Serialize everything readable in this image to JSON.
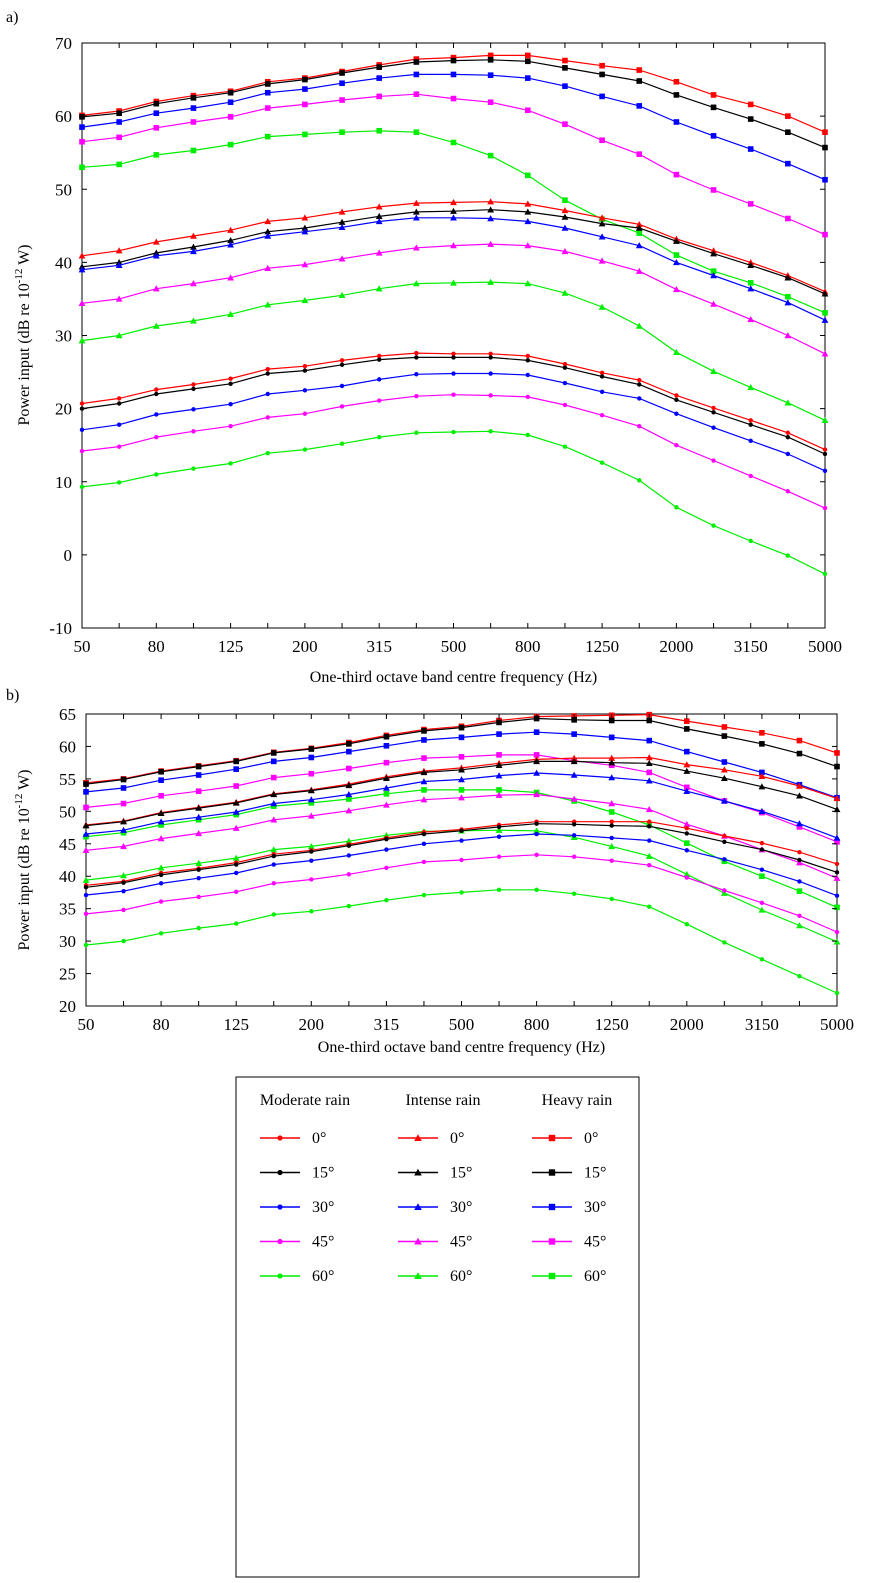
{
  "colors": {
    "0": "#ff0000",
    "15": "#000000",
    "30": "#0000ff",
    "45": "#ff00ff",
    "60": "#00ee00"
  },
  "legend": {
    "groups": [
      {
        "title": "Moderate rain",
        "marker": "dot"
      },
      {
        "title": "Intense rain",
        "marker": "triangle"
      },
      {
        "title": "Heavy rain",
        "marker": "square"
      }
    ],
    "angles": [
      "0°",
      "15°",
      "30°",
      "45°",
      "60°"
    ],
    "angle_keys": [
      "0",
      "15",
      "30",
      "45",
      "60"
    ]
  },
  "chart_data": [
    {
      "panel_label": "a)",
      "type": "line",
      "xlabel": "One-third octave band centre frequency (Hz)",
      "ylabel": "Power input (dB re 10",
      "ylabel_exp": "-12",
      "ylabel_unit": " W)",
      "x": [
        "50",
        "63",
        "80",
        "100",
        "125",
        "160",
        "200",
        "250",
        "315",
        "400",
        "500",
        "630",
        "800",
        "1000",
        "1250",
        "1600",
        "2000",
        "2500",
        "3150",
        "4000",
        "5000"
      ],
      "x_tick_labels": [
        "50",
        "80",
        "125",
        "200",
        "315",
        "500",
        "800",
        "1250",
        "2000",
        "3150",
        "5000"
      ],
      "ylim": [
        -10,
        70
      ],
      "y_ticks": [
        -10,
        0,
        10,
        20,
        30,
        40,
        50,
        60,
        70
      ],
      "series": [
        {
          "name": "Heavy rain 0°",
          "rain": "Heavy rain",
          "angle": "0",
          "marker": "square",
          "values": [
            60.1,
            60.7,
            62.0,
            62.8,
            63.4,
            64.7,
            65.2,
            66.1,
            67.0,
            67.8,
            68.0,
            68.3,
            68.3,
            67.6,
            66.9,
            66.3,
            64.7,
            62.9,
            61.6,
            60.0,
            57.8
          ]
        },
        {
          "name": "Heavy rain 15°",
          "rain": "Heavy rain",
          "angle": "15",
          "marker": "square",
          "values": [
            59.9,
            60.4,
            61.7,
            62.5,
            63.2,
            64.4,
            65.0,
            65.9,
            66.7,
            67.4,
            67.6,
            67.7,
            67.5,
            66.6,
            65.7,
            64.8,
            62.9,
            61.2,
            59.6,
            57.8,
            55.7
          ]
        },
        {
          "name": "Heavy rain 30°",
          "rain": "Heavy rain",
          "angle": "30",
          "marker": "square",
          "values": [
            58.5,
            59.2,
            60.4,
            61.1,
            61.9,
            63.2,
            63.7,
            64.5,
            65.2,
            65.7,
            65.7,
            65.6,
            65.2,
            64.1,
            62.7,
            61.4,
            59.2,
            57.3,
            55.5,
            53.5,
            51.3
          ]
        },
        {
          "name": "Heavy rain 45°",
          "rain": "Heavy rain",
          "angle": "45",
          "marker": "square",
          "values": [
            56.5,
            57.1,
            58.4,
            59.2,
            59.9,
            61.1,
            61.6,
            62.2,
            62.7,
            63.0,
            62.4,
            61.9,
            60.8,
            58.9,
            56.7,
            54.8,
            52.0,
            49.9,
            48.0,
            46.0,
            43.8
          ]
        },
        {
          "name": "Heavy rain 60°",
          "rain": "Heavy rain",
          "angle": "60",
          "marker": "square",
          "values": [
            53.0,
            53.4,
            54.7,
            55.3,
            56.1,
            57.2,
            57.5,
            57.8,
            58.0,
            57.8,
            56.4,
            54.6,
            51.9,
            48.5,
            45.9,
            44.0,
            41.0,
            38.8,
            37.2,
            35.3,
            33.1
          ]
        },
        {
          "name": "Intense rain 0°",
          "rain": "Intense rain",
          "angle": "0",
          "marker": "triangle",
          "values": [
            40.9,
            41.6,
            42.8,
            43.6,
            44.4,
            45.6,
            46.1,
            46.9,
            47.6,
            48.1,
            48.2,
            48.3,
            48.0,
            47.1,
            46.1,
            45.2,
            43.2,
            41.6,
            40.0,
            38.2,
            36.0
          ]
        },
        {
          "name": "Intense rain 15°",
          "rain": "Intense rain",
          "angle": "15",
          "marker": "triangle",
          "values": [
            39.4,
            40.0,
            41.3,
            42.1,
            43.0,
            44.2,
            44.7,
            45.5,
            46.3,
            46.9,
            47.0,
            47.2,
            46.9,
            46.2,
            45.3,
            44.7,
            42.9,
            41.2,
            39.6,
            37.9,
            35.7
          ]
        },
        {
          "name": "Intense rain 30°",
          "rain": "Intense rain",
          "angle": "30",
          "marker": "triangle",
          "values": [
            39.0,
            39.6,
            40.9,
            41.5,
            42.4,
            43.6,
            44.2,
            44.8,
            45.6,
            46.1,
            46.1,
            46.0,
            45.6,
            44.7,
            43.5,
            42.3,
            40.0,
            38.2,
            36.4,
            34.5,
            32.1
          ]
        },
        {
          "name": "Intense rain 45°",
          "rain": "Intense rain",
          "angle": "45",
          "marker": "triangle",
          "values": [
            34.4,
            35.0,
            36.4,
            37.1,
            37.9,
            39.2,
            39.7,
            40.5,
            41.3,
            42.0,
            42.3,
            42.5,
            42.3,
            41.5,
            40.2,
            38.8,
            36.3,
            34.3,
            32.2,
            30.0,
            27.5
          ]
        },
        {
          "name": "Intense rain 60°",
          "rain": "Intense rain",
          "angle": "60",
          "marker": "triangle",
          "values": [
            29.3,
            30.0,
            31.3,
            32.0,
            32.9,
            34.2,
            34.8,
            35.5,
            36.4,
            37.1,
            37.2,
            37.3,
            37.1,
            35.8,
            33.9,
            31.3,
            27.7,
            25.1,
            22.9,
            20.8,
            18.4
          ]
        },
        {
          "name": "Moderate rain 0°",
          "rain": "Moderate rain",
          "angle": "0",
          "marker": "dot",
          "values": [
            20.7,
            21.4,
            22.6,
            23.3,
            24.1,
            25.4,
            25.8,
            26.6,
            27.2,
            27.6,
            27.5,
            27.5,
            27.2,
            26.1,
            24.9,
            23.9,
            21.8,
            20.1,
            18.4,
            16.7,
            14.4
          ]
        },
        {
          "name": "Moderate rain 15°",
          "rain": "Moderate rain",
          "angle": "15",
          "marker": "dot",
          "values": [
            20.0,
            20.7,
            22.0,
            22.7,
            23.4,
            24.8,
            25.2,
            26.0,
            26.7,
            27.0,
            27.0,
            27.0,
            26.6,
            25.6,
            24.4,
            23.3,
            21.2,
            19.5,
            17.8,
            16.1,
            13.8
          ]
        },
        {
          "name": "Moderate rain 30°",
          "rain": "Moderate rain",
          "angle": "30",
          "marker": "dot",
          "values": [
            17.1,
            17.8,
            19.2,
            19.9,
            20.6,
            22.0,
            22.5,
            23.1,
            24.0,
            24.7,
            24.8,
            24.8,
            24.6,
            23.5,
            22.3,
            21.4,
            19.3,
            17.4,
            15.6,
            13.8,
            11.5
          ]
        },
        {
          "name": "Moderate rain 45°",
          "rain": "Moderate rain",
          "angle": "45",
          "marker": "dot",
          "values": [
            14.2,
            14.8,
            16.1,
            16.9,
            17.6,
            18.8,
            19.3,
            20.3,
            21.1,
            21.7,
            21.9,
            21.8,
            21.6,
            20.5,
            19.1,
            17.6,
            15.0,
            12.9,
            10.8,
            8.7,
            6.4
          ]
        },
        {
          "name": "Moderate rain 60°",
          "rain": "Moderate rain",
          "angle": "60",
          "marker": "dot",
          "values": [
            9.3,
            9.9,
            11.0,
            11.8,
            12.5,
            13.9,
            14.4,
            15.2,
            16.1,
            16.7,
            16.8,
            16.9,
            16.4,
            14.8,
            12.6,
            10.2,
            6.5,
            4.0,
            1.9,
            -0.1,
            -2.6
          ]
        }
      ]
    },
    {
      "panel_label": "b)",
      "type": "line",
      "xlabel": "One-third octave band centre frequency (Hz)",
      "ylabel": "Power input (dB re 10",
      "ylabel_exp": "-12",
      "ylabel_unit": " W)",
      "x": [
        "50",
        "63",
        "80",
        "100",
        "125",
        "160",
        "200",
        "250",
        "315",
        "400",
        "500",
        "630",
        "800",
        "1000",
        "1250",
        "1600",
        "2000",
        "2500",
        "3150",
        "4000",
        "5000"
      ],
      "x_tick_labels": [
        "50",
        "80",
        "125",
        "200",
        "315",
        "500",
        "800",
        "1250",
        "2000",
        "3150",
        "5000"
      ],
      "ylim": [
        20,
        65
      ],
      "y_ticks": [
        20,
        25,
        30,
        35,
        40,
        45,
        50,
        55,
        60,
        65
      ],
      "series": [
        {
          "name": "Heavy rain 0°",
          "rain": "Heavy rain",
          "angle": "0",
          "marker": "square",
          "values": [
            54.4,
            55.0,
            56.2,
            57.0,
            57.8,
            59.1,
            59.7,
            60.6,
            61.7,
            62.6,
            63.1,
            64.0,
            64.6,
            64.7,
            64.8,
            64.9,
            63.9,
            63.0,
            62.1,
            60.9,
            59.0
          ]
        },
        {
          "name": "Heavy rain 15°",
          "rain": "Heavy rain",
          "angle": "15",
          "marker": "square",
          "values": [
            54.2,
            54.9,
            56.1,
            56.9,
            57.7,
            59.0,
            59.6,
            60.4,
            61.5,
            62.4,
            62.9,
            63.7,
            64.3,
            64.1,
            64.0,
            64.0,
            62.7,
            61.6,
            60.4,
            58.9,
            56.9
          ]
        },
        {
          "name": "Heavy rain 30°",
          "rain": "Heavy rain",
          "angle": "30",
          "marker": "square",
          "values": [
            53.0,
            53.6,
            54.8,
            55.6,
            56.5,
            57.7,
            58.3,
            59.2,
            60.1,
            61.0,
            61.4,
            61.9,
            62.2,
            61.9,
            61.4,
            60.9,
            59.2,
            57.6,
            56.0,
            54.1,
            52.1
          ]
        },
        {
          "name": "Heavy rain 45°",
          "rain": "Heavy rain",
          "angle": "45",
          "marker": "square",
          "values": [
            50.6,
            51.2,
            52.4,
            53.1,
            53.9,
            55.2,
            55.8,
            56.6,
            57.5,
            58.2,
            58.4,
            58.7,
            58.7,
            57.8,
            57.1,
            56.0,
            53.7,
            51.6,
            49.8,
            47.6,
            45.3
          ]
        },
        {
          "name": "Heavy rain 60°",
          "rain": "Heavy rain",
          "angle": "60",
          "marker": "square",
          "values": [
            46.1,
            46.7,
            47.9,
            48.7,
            49.5,
            50.8,
            51.3,
            51.9,
            52.7,
            53.3,
            53.3,
            53.3,
            52.9,
            51.6,
            49.9,
            47.9,
            45.1,
            42.3,
            40.0,
            37.7,
            35.2
          ]
        },
        {
          "name": "Intense rain 0°",
          "rain": "Intense rain",
          "angle": "0",
          "marker": "triangle",
          "values": [
            47.9,
            48.5,
            49.8,
            50.6,
            51.4,
            52.7,
            53.3,
            54.2,
            55.3,
            56.2,
            56.7,
            57.4,
            58.0,
            58.2,
            58.2,
            58.3,
            57.2,
            56.4,
            55.4,
            53.9,
            52.0
          ]
        },
        {
          "name": "Intense rain 15°",
          "rain": "Intense rain",
          "angle": "15",
          "marker": "triangle",
          "values": [
            47.8,
            48.4,
            49.7,
            50.5,
            51.3,
            52.6,
            53.2,
            54.0,
            55.1,
            56.0,
            56.4,
            57.1,
            57.7,
            57.7,
            57.5,
            57.4,
            56.2,
            55.1,
            53.8,
            52.4,
            50.3
          ]
        },
        {
          "name": "Intense rain 30°",
          "rain": "Intense rain",
          "angle": "30",
          "marker": "triangle",
          "values": [
            46.5,
            47.1,
            48.4,
            49.1,
            49.9,
            51.2,
            51.8,
            52.6,
            53.6,
            54.6,
            54.9,
            55.5,
            55.9,
            55.6,
            55.2,
            54.7,
            53.1,
            51.6,
            50.0,
            48.1,
            45.9
          ]
        },
        {
          "name": "Intense rain 45°",
          "rain": "Intense rain",
          "angle": "45",
          "marker": "triangle",
          "values": [
            44.0,
            44.6,
            45.8,
            46.6,
            47.4,
            48.7,
            49.3,
            50.1,
            51.0,
            51.8,
            52.1,
            52.5,
            52.6,
            51.9,
            51.2,
            50.3,
            48.0,
            46.2,
            44.1,
            42.1,
            39.7
          ]
        },
        {
          "name": "Intense rain 60°",
          "rain": "Intense rain",
          "angle": "60",
          "marker": "triangle",
          "values": [
            39.4,
            40.1,
            41.3,
            42.0,
            42.8,
            44.1,
            44.6,
            45.4,
            46.3,
            46.9,
            47.0,
            47.1,
            47.0,
            46.0,
            44.6,
            43.1,
            40.3,
            37.4,
            34.8,
            32.4,
            29.9
          ]
        },
        {
          "name": "Moderate rain 0°",
          "rain": "Moderate rain",
          "angle": "0",
          "marker": "dot",
          "values": [
            38.6,
            39.2,
            40.5,
            41.2,
            42.1,
            43.4,
            44.0,
            44.9,
            45.9,
            46.8,
            47.2,
            47.9,
            48.4,
            48.4,
            48.4,
            48.4,
            47.4,
            46.2,
            45.1,
            43.7,
            41.9
          ]
        },
        {
          "name": "Moderate rain 15°",
          "rain": "Moderate rain",
          "angle": "15",
          "marker": "dot",
          "values": [
            38.3,
            39.0,
            40.2,
            41.0,
            41.8,
            43.1,
            43.8,
            44.7,
            45.7,
            46.5,
            47.0,
            47.6,
            48.1,
            48.0,
            47.8,
            47.7,
            46.6,
            45.3,
            44.1,
            42.5,
            40.6
          ]
        },
        {
          "name": "Moderate rain 30°",
          "rain": "Moderate rain",
          "angle": "30",
          "marker": "dot",
          "values": [
            37.1,
            37.7,
            38.9,
            39.7,
            40.5,
            41.8,
            42.4,
            43.2,
            44.1,
            45.0,
            45.5,
            46.1,
            46.5,
            46.3,
            45.9,
            45.5,
            44.0,
            42.6,
            41.0,
            39.2,
            37.0
          ]
        },
        {
          "name": "Moderate rain 45°",
          "rain": "Moderate rain",
          "angle": "45",
          "marker": "dot",
          "values": [
            34.2,
            34.8,
            36.1,
            36.8,
            37.6,
            38.9,
            39.5,
            40.3,
            41.3,
            42.2,
            42.5,
            43.0,
            43.3,
            43.0,
            42.4,
            41.7,
            39.8,
            37.8,
            35.9,
            33.9,
            31.4
          ]
        },
        {
          "name": "Moderate rain 60°",
          "rain": "Moderate rain",
          "angle": "60",
          "marker": "dot",
          "values": [
            29.4,
            30.0,
            31.2,
            32.0,
            32.7,
            34.1,
            34.6,
            35.4,
            36.3,
            37.1,
            37.5,
            37.9,
            37.9,
            37.3,
            36.5,
            35.3,
            32.6,
            29.8,
            27.2,
            24.6,
            22.0
          ]
        }
      ]
    }
  ]
}
